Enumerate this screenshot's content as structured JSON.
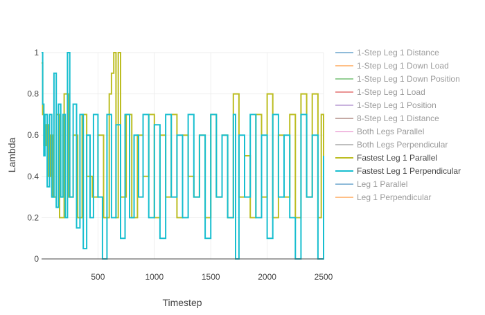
{
  "chart_data": {
    "type": "line",
    "xlabel": "Timestep",
    "ylabel": "Lambda",
    "xlim": [
      0,
      2500
    ],
    "ylim": [
      0,
      1
    ],
    "x_ticks": [
      500,
      1000,
      1500,
      2000,
      2500
    ],
    "x_tick_labels": [
      "500",
      "1000",
      "1500",
      "2000",
      "2500"
    ],
    "y_ticks": [
      0,
      0.2,
      0.4,
      0.6,
      0.8,
      1
    ],
    "y_tick_labels": [
      "0",
      "0.2",
      "0.4",
      "0.6",
      "0.8",
      "1"
    ],
    "grid": true,
    "legend_position": "right",
    "legend": [
      {
        "name": "1-Step Leg 1 Distance",
        "color": "#1f77b4",
        "active": false
      },
      {
        "name": "1-Step Leg 1 Down Load",
        "color": "#ff7f0e",
        "active": false
      },
      {
        "name": "1-Step Leg 1 Down Position",
        "color": "#2ca02c",
        "active": false
      },
      {
        "name": "1-Step Leg 1 Load",
        "color": "#d62728",
        "active": false
      },
      {
        "name": "1-Step Leg 1 Position",
        "color": "#9467bd",
        "active": false
      },
      {
        "name": "8-Step Leg 1 Distance",
        "color": "#8c564b",
        "active": false
      },
      {
        "name": "Both Legs Parallel",
        "color": "#e377c2",
        "active": false
      },
      {
        "name": "Both Legs Perpendicular",
        "color": "#7f7f7f",
        "active": false
      },
      {
        "name": "Fastest Leg 1 Parallel",
        "color": "#bcbd22",
        "active": true
      },
      {
        "name": "Fastest Leg 1 Perpendicular",
        "color": "#17becf",
        "active": true
      },
      {
        "name": "Leg 1 Parallel",
        "color": "#1f77b4",
        "active": false
      },
      {
        "name": "Leg 1 Perpendicular",
        "color": "#ff7f0e",
        "active": false
      }
    ],
    "series": [
      {
        "name": "Fastest Leg 1 Parallel",
        "color": "#bcbd22",
        "x": [
          0,
          10,
          20,
          40,
          60,
          80,
          100,
          130,
          160,
          200,
          240,
          280,
          320,
          360,
          400,
          450,
          500,
          550,
          600,
          620,
          640,
          660,
          680,
          700,
          750,
          800,
          850,
          900,
          950,
          1000,
          1050,
          1100,
          1150,
          1200,
          1250,
          1300,
          1350,
          1400,
          1450,
          1500,
          1550,
          1600,
          1650,
          1700,
          1750,
          1800,
          1850,
          1900,
          1950,
          2000,
          2050,
          2100,
          2150,
          2200,
          2250,
          2300,
          2350,
          2400,
          2450,
          2480,
          2500
        ],
        "y": [
          0.95,
          0.7,
          0.55,
          0.65,
          0.4,
          0.6,
          0.3,
          0.7,
          0.2,
          0.8,
          0.3,
          0.6,
          0.2,
          0.7,
          0.4,
          0.3,
          0.6,
          0.2,
          0.8,
          0.9,
          1.0,
          0.2,
          1.0,
          0.3,
          0.7,
          0.2,
          0.6,
          0.4,
          0.7,
          0.2,
          0.6,
          0.3,
          0.7,
          0.2,
          0.6,
          0.4,
          0.3,
          0.6,
          0.2,
          0.7,
          0.3,
          0.6,
          0.2,
          0.8,
          0.3,
          0.5,
          0.2,
          0.7,
          0.3,
          0.8,
          0.2,
          0.6,
          0.3,
          0.7,
          0.2,
          0.8,
          0.3,
          0.8,
          0.2,
          0.7,
          0.1
        ]
      },
      {
        "name": "Fastest Leg 1 Perpendicular",
        "color": "#17becf",
        "x": [
          0,
          10,
          20,
          30,
          50,
          70,
          90,
          110,
          130,
          150,
          170,
          190,
          210,
          230,
          250,
          280,
          310,
          340,
          370,
          400,
          430,
          460,
          500,
          540,
          580,
          620,
          660,
          700,
          740,
          780,
          820,
          860,
          900,
          950,
          1000,
          1050,
          1100,
          1150,
          1200,
          1250,
          1300,
          1350,
          1400,
          1450,
          1500,
          1550,
          1600,
          1650,
          1700,
          1720,
          1750,
          1800,
          1850,
          1900,
          1950,
          2000,
          2050,
          2100,
          2150,
          2200,
          2250,
          2300,
          2350,
          2400,
          2450,
          2500
        ],
        "y": [
          1.0,
          0.75,
          0.5,
          0.7,
          0.35,
          0.7,
          0.3,
          0.9,
          0.25,
          0.75,
          0.3,
          0.7,
          0.2,
          1.0,
          0.3,
          0.75,
          0.15,
          0.7,
          0.05,
          0.6,
          0.2,
          0.7,
          0.3,
          0.0,
          0.7,
          0.2,
          0.65,
          0.1,
          0.7,
          0.2,
          0.6,
          0.3,
          0.7,
          0.2,
          0.65,
          0.1,
          0.7,
          0.3,
          0.6,
          0.2,
          0.7,
          0.3,
          0.6,
          0.1,
          0.7,
          0.3,
          0.6,
          0.2,
          0.7,
          0.0,
          0.6,
          0.3,
          0.7,
          0.2,
          0.6,
          0.1,
          0.7,
          0.3,
          0.6,
          0.2,
          0.0,
          0.7,
          0.3,
          0.6,
          0.0,
          0.5
        ]
      }
    ]
  }
}
